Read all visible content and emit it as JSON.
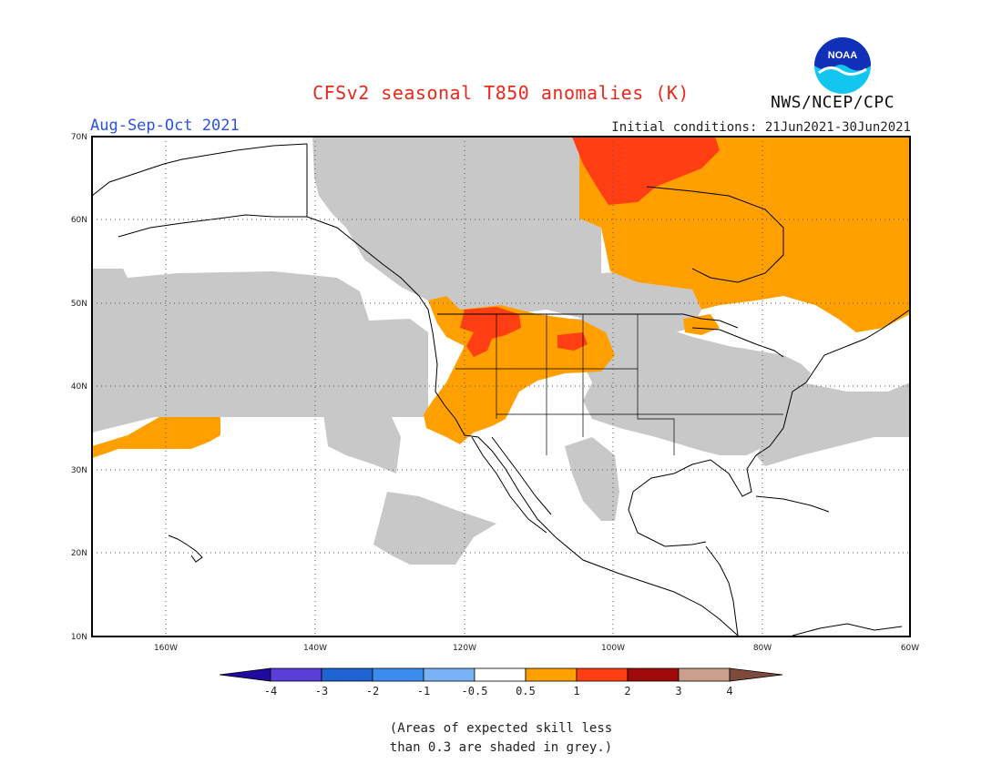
{
  "title": "CFSv2 seasonal T850 anomalies (K)",
  "period": "Aug-Sep-Oct 2021",
  "initial_conditions": "Initial conditions: 21Jun2021-30Jun2021",
  "organization": "NWS/NCEP/CPC",
  "logo_text": "NOAA",
  "map": {
    "lat_labels": [
      "70N",
      "60N",
      "50N",
      "40N",
      "30N",
      "20N",
      "10N"
    ],
    "lon_labels": [
      "160W",
      "140W",
      "120W",
      "100W",
      "80W",
      "60W"
    ],
    "colors": {
      "skill_grey": "#c8c8c8",
      "anom_0_5_1": "#ff9f00",
      "anom_1_2": "#ff3f13",
      "coast": "#000000"
    }
  },
  "colorbar": {
    "tick_labels": [
      "-4",
      "-3",
      "-2",
      "-1",
      "-0.5",
      "0.5",
      "1",
      "2",
      "3",
      "4"
    ],
    "colors": [
      "#1e0a9e",
      "#5a3ed8",
      "#1e64d2",
      "#3c8cf0",
      "#78b4f5",
      "#ffffff",
      "#ff9f00",
      "#ff3f13",
      "#a00a0a",
      "#c8a08c",
      "#7d4a3c"
    ]
  },
  "caption": {
    "line1": "(Areas of expected skill less",
    "line2": "than 0.3 are shaded in grey.)"
  }
}
